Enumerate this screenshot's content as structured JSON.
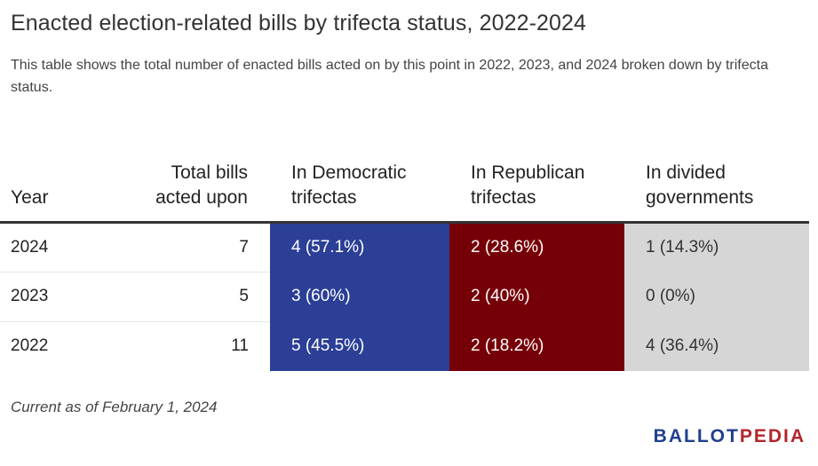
{
  "title": "Enacted election-related bills by trifecta status, 2022-2024",
  "subtitle": "This table shows the total number of enacted bills acted on by this point in 2022, 2023, and 2024 broken down by trifecta status.",
  "note": "Current as of February 1, 2024",
  "logo": {
    "part1": "BALLOT",
    "part2": "PEDIA"
  },
  "colors": {
    "democratic": "#2b3f97",
    "republican": "#760008",
    "divided": "#d6d6d6"
  },
  "chart_data": {
    "type": "table",
    "columns": [
      "Year",
      "Total bills acted upon",
      "In Democratic trifectas",
      "In Republican trifectas",
      "In divided governments"
    ],
    "rows": [
      {
        "year": "2024",
        "total": "7",
        "dem": "4 (57.1%)",
        "rep": "2 (28.6%)",
        "div": "1 (14.3%)"
      },
      {
        "year": "2023",
        "total": "5",
        "dem": "3 (60%)",
        "rep": "2 (40%)",
        "div": "0 (0%)"
      },
      {
        "year": "2022",
        "total": "11",
        "dem": "5 (45.5%)",
        "rep": "2 (18.2%)",
        "div": "4 (36.4%)"
      }
    ]
  }
}
